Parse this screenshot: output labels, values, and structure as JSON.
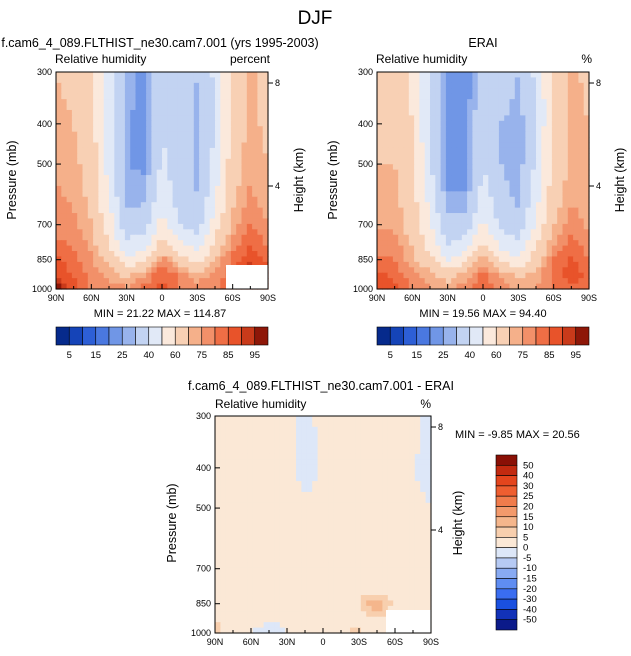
{
  "page": {
    "title": "DJF"
  },
  "panels": [
    {
      "id": "model",
      "title": "f.cam6_4_089.FLTHIST_ne30.cam7.001 (yrs 1995-2003)",
      "left_label": "Relative humidity",
      "right_label": "percent",
      "stats": "MIN = 21.22  MAX = 114.87"
    },
    {
      "id": "obs",
      "title": "ERAI",
      "left_label": "Relative humidity",
      "right_label": "%",
      "stats": "MIN = 19.56  MAX = 94.40"
    },
    {
      "id": "diff",
      "title": "f.cam6_4_089.FLTHIST_ne30.cam7.001 - ERAI",
      "left_label": "Relative humidity",
      "right_label": "%",
      "stats": "MIN = -9.85  MAX = 20.56"
    }
  ],
  "chart_data": {
    "type": "heatmap",
    "title": "DJF",
    "xlabel": "",
    "ylabel": "Pressure (mb)",
    "y2label": "Height (km)",
    "x_ticks": [
      "90N",
      "60N",
      "30N",
      "0",
      "30S",
      "60S",
      "90S"
    ],
    "x_tick_values": [
      90,
      60,
      30,
      0,
      -30,
      -60,
      -90
    ],
    "xlim": [
      90,
      -90
    ],
    "y_ticks": [
      300,
      400,
      500,
      700,
      850,
      1000
    ],
    "ylim": [
      300,
      1000
    ],
    "y_scale": "log",
    "y2_ticks": [
      8,
      4
    ],
    "grid": false,
    "fields": {
      "model": {
        "latitudes": [
          90,
          75,
          60,
          45,
          30,
          15,
          0,
          -15,
          -30,
          -45,
          -60,
          -75,
          -90
        ],
        "pressures": [
          300,
          400,
          500,
          600,
          700,
          800,
          850,
          925,
          1000
        ],
        "values": [
          [
            70,
            68,
            62,
            45,
            28,
            22,
            38,
            40,
            30,
            42,
            62,
            72,
            66
          ],
          [
            72,
            70,
            64,
            44,
            26,
            22,
            40,
            34,
            28,
            40,
            64,
            72,
            68
          ],
          [
            74,
            72,
            66,
            46,
            25,
            24,
            42,
            34,
            28,
            44,
            66,
            74,
            70
          ],
          [
            76,
            74,
            68,
            50,
            28,
            28,
            46,
            36,
            30,
            48,
            68,
            76,
            72
          ],
          [
            78,
            76,
            70,
            55,
            34,
            36,
            54,
            40,
            36,
            55,
            72,
            80,
            75
          ],
          [
            82,
            80,
            74,
            62,
            44,
            48,
            66,
            55,
            48,
            64,
            78,
            86,
            80
          ],
          [
            86,
            82,
            76,
            68,
            52,
            60,
            78,
            64,
            56,
            70,
            82,
            90,
            84
          ],
          [
            90,
            84,
            78,
            74,
            68,
            74,
            86,
            78,
            72,
            76,
            84,
            92,
            88
          ],
          [
            98,
            88,
            80,
            78,
            76,
            82,
            86,
            80,
            78,
            80,
            84,
            88,
            86
          ]
        ]
      },
      "obs": {
        "latitudes": [
          90,
          75,
          60,
          45,
          30,
          15,
          0,
          -15,
          -30,
          -45,
          -60,
          -75,
          -90
        ],
        "pressures": [
          300,
          400,
          500,
          600,
          700,
          800,
          850,
          925,
          1000
        ],
        "values": [
          [
            66,
            66,
            58,
            40,
            25,
            21,
            36,
            38,
            30,
            42,
            60,
            72,
            68
          ],
          [
            68,
            68,
            60,
            40,
            22,
            21,
            38,
            30,
            26,
            40,
            62,
            72,
            70
          ],
          [
            70,
            70,
            62,
            42,
            22,
            22,
            40,
            30,
            26,
            42,
            64,
            72,
            70
          ],
          [
            72,
            72,
            64,
            46,
            26,
            26,
            44,
            34,
            28,
            46,
            66,
            74,
            72
          ],
          [
            74,
            74,
            66,
            52,
            32,
            34,
            52,
            38,
            32,
            52,
            70,
            78,
            74
          ],
          [
            78,
            78,
            70,
            58,
            42,
            46,
            64,
            50,
            44,
            60,
            76,
            84,
            78
          ],
          [
            82,
            80,
            72,
            64,
            50,
            58,
            74,
            60,
            52,
            66,
            80,
            86,
            80
          ],
          [
            86,
            84,
            76,
            72,
            66,
            72,
            82,
            74,
            68,
            72,
            82,
            88,
            84
          ],
          [
            90,
            86,
            80,
            76,
            74,
            80,
            84,
            78,
            74,
            76,
            80,
            84,
            82
          ]
        ]
      },
      "diff": {
        "latitudes": [
          90,
          75,
          60,
          45,
          30,
          15,
          0,
          -15,
          -30,
          -45,
          -60,
          -75,
          -90
        ],
        "pressures": [
          300,
          400,
          500,
          600,
          700,
          800,
          850,
          925,
          1000
        ],
        "values": [
          [
            4,
            2,
            4,
            5,
            3,
            -2,
            2,
            2,
            0,
            0,
            2,
            2,
            -2
          ],
          [
            4,
            2,
            4,
            4,
            4,
            -4,
            2,
            4,
            2,
            0,
            2,
            0,
            -2
          ],
          [
            4,
            2,
            4,
            4,
            3,
            2,
            2,
            4,
            2,
            2,
            2,
            2,
            0
          ],
          [
            4,
            2,
            4,
            4,
            2,
            2,
            2,
            2,
            2,
            2,
            2,
            2,
            0
          ],
          [
            4,
            2,
            4,
            3,
            2,
            2,
            2,
            2,
            4,
            3,
            2,
            2,
            1
          ],
          [
            4,
            2,
            4,
            4,
            2,
            2,
            2,
            5,
            4,
            4,
            2,
            2,
            2
          ],
          [
            4,
            2,
            4,
            4,
            2,
            2,
            4,
            4,
            4,
            16,
            2,
            2,
            4
          ],
          [
            4,
            2,
            4,
            2,
            2,
            2,
            4,
            4,
            4,
            4,
            2,
            4,
            4
          ],
          [
            8,
            2,
            0,
            -6,
            0,
            2,
            4,
            4,
            6,
            2,
            0,
            2,
            4
          ]
        ]
      }
    },
    "colorbars": {
      "abs": {
        "levels": [
          5,
          10,
          15,
          20,
          25,
          30,
          40,
          50,
          60,
          70,
          75,
          80,
          85,
          90,
          95
        ],
        "labels": [
          "5",
          "15",
          "25",
          "40",
          "60",
          "75",
          "85",
          "95"
        ],
        "colors": [
          "#062a8c",
          "#1544b8",
          "#2d5fd6",
          "#4a78e0",
          "#7096e6",
          "#98b3ec",
          "#c2d3f2",
          "#e1e9f7",
          "#fbe9dc",
          "#f8d0b4",
          "#f5b08a",
          "#f29069",
          "#ef6e45",
          "#e8532a",
          "#c93a1a",
          "#8e1708"
        ]
      },
      "diff": {
        "levels": [
          -50,
          -40,
          -30,
          -20,
          -15,
          -10,
          -5,
          0,
          5,
          10,
          15,
          20,
          25,
          30,
          40,
          50
        ],
        "labels": [
          "50",
          "40",
          "30",
          "25",
          "20",
          "15",
          "10",
          "5",
          "0",
          "-5",
          "-10",
          "-15",
          "-20",
          "-30",
          "-40",
          "-50"
        ],
        "colors": [
          "#0b1a8a",
          "#1232b8",
          "#1a50e0",
          "#3a6df0",
          "#5f8df2",
          "#88aaf2",
          "#b6caf4",
          "#dde7f8",
          "#fbe8d6",
          "#f8cfae",
          "#f5b68c",
          "#f39a6c",
          "#f07c4c",
          "#ee5e30",
          "#e4451d",
          "#c22a10",
          "#8a1006"
        ]
      }
    }
  }
}
